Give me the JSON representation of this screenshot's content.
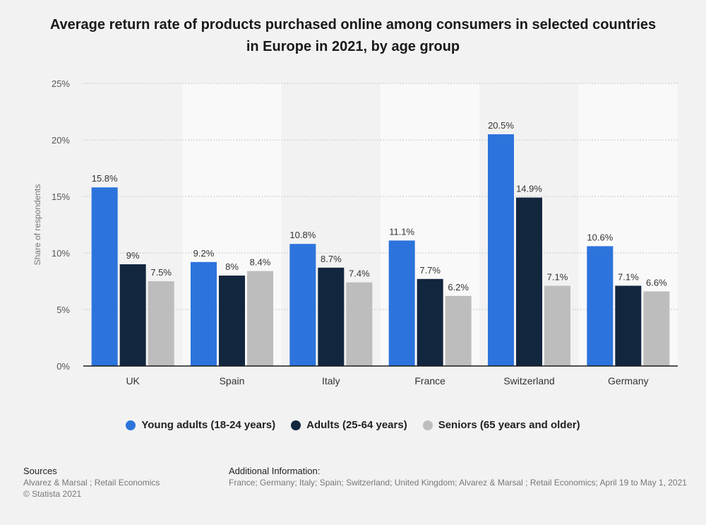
{
  "title": "Average return rate of products purchased online among consumers in selected countries in Europe in 2021, by age group",
  "colors": {
    "young": "#2c74dc",
    "adults": "#12263e",
    "seniors": "#bdbdbd",
    "band": "#f9f9f9",
    "plot_bg": "#f2f2f2"
  },
  "chart_data": {
    "type": "bar",
    "categories": [
      "UK",
      "Spain",
      "Italy",
      "France",
      "Switzerland",
      "Germany"
    ],
    "series": [
      {
        "name": "Young adults (18-24 years)",
        "values": [
          15.8,
          9.2,
          10.8,
          11.1,
          20.5,
          10.6
        ],
        "labels": [
          "15.8%",
          "9.2%",
          "10.8%",
          "11.1%",
          "20.5%",
          "10.6%"
        ]
      },
      {
        "name": "Adults (25-64 years)",
        "values": [
          9,
          8,
          8.7,
          7.7,
          14.9,
          7.1
        ],
        "labels": [
          "9%",
          "8%",
          "8.7%",
          "7.7%",
          "14.9%",
          "7.1%"
        ]
      },
      {
        "name": "Seniors (65 years and older)",
        "values": [
          7.5,
          8.4,
          7.4,
          6.2,
          7.1,
          6.6
        ],
        "labels": [
          "7.5%",
          "8.4%",
          "7.4%",
          "6.2%",
          "7.1%",
          "6.6%"
        ]
      }
    ],
    "ylabel": "Share of respondents",
    "ylim": [
      0,
      25
    ],
    "yticks": [
      0,
      5,
      10,
      15,
      20,
      25
    ],
    "ytick_labels": [
      "0%",
      "5%",
      "10%",
      "15%",
      "20%",
      "25%"
    ],
    "grid": true,
    "legend_position": "bottom"
  },
  "footer": {
    "sources_title": "Sources",
    "sources_line1": "Alvarez & Marsal ; Retail Economics",
    "sources_line2": "© Statista 2021",
    "additional_title": "Additional Information:",
    "additional_text": "France; Germany; Italy; Spain; Switzerland; United Kingdom; Alvarez & Marsal ; Retail Economics; April 19 to May 1, 2021"
  }
}
